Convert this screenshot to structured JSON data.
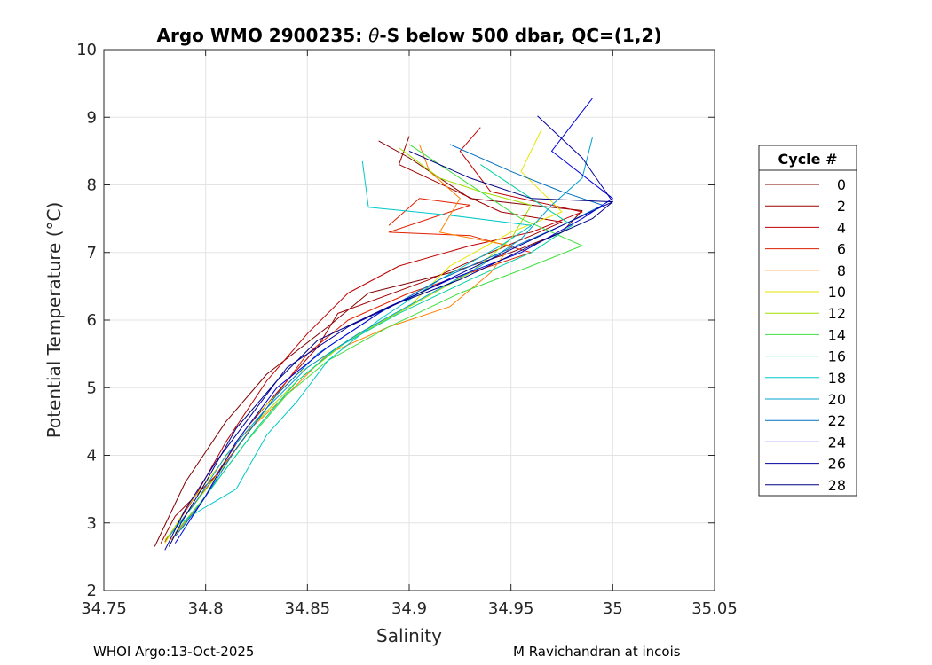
{
  "chart_data": {
    "type": "line",
    "title_prefix": "Argo WMO 2900235: ",
    "title_theta": "θ",
    "title_suffix": "-S below 500 dbar,  QC=(1,2)",
    "xlabel": "Salinity",
    "ylabel": "Potential Temperature (°C)",
    "xlim": [
      34.75,
      35.05
    ],
    "ylim": [
      2,
      10
    ],
    "xticks": [
      "34.75",
      "34.8",
      "34.85",
      "34.9",
      "34.95",
      "35",
      "35.05"
    ],
    "yticks": [
      "2",
      "3",
      "4",
      "5",
      "6",
      "7",
      "8",
      "9",
      "10"
    ],
    "grid": true,
    "legend": {
      "title": "Cycle #",
      "position": "right",
      "entries": [
        "0",
        "2",
        "4",
        "6",
        "8",
        "10",
        "12",
        "14",
        "16",
        "18",
        "20",
        "22",
        "24",
        "26",
        "28"
      ]
    },
    "series": [
      {
        "name": "0",
        "color": "#800000",
        "x": [
          34.885,
          34.9,
          34.915,
          34.93,
          34.96,
          34.985,
          34.975,
          34.95,
          34.92,
          34.88,
          34.86,
          34.83,
          34.81,
          34.79,
          34.775
        ],
        "y": [
          8.65,
          8.4,
          8.1,
          7.8,
          7.7,
          7.62,
          7.3,
          7.0,
          6.7,
          6.4,
          5.9,
          5.2,
          4.5,
          3.6,
          2.65
        ]
      },
      {
        "name": "2",
        "color": "#a00000",
        "x": [
          34.9,
          34.895,
          34.92,
          34.945,
          34.975,
          34.96,
          34.94,
          34.91,
          34.865,
          34.855,
          34.84,
          34.82,
          34.805,
          34.785,
          34.778
        ],
        "y": [
          8.72,
          8.3,
          7.95,
          7.6,
          7.45,
          7.25,
          7.0,
          6.6,
          6.1,
          5.6,
          5.1,
          4.4,
          3.7,
          3.1,
          2.7
        ]
      },
      {
        "name": "4",
        "color": "#c00000",
        "x": [
          34.935,
          34.925,
          34.94,
          34.985,
          34.96,
          34.93,
          34.895,
          34.87,
          34.85,
          34.83,
          34.81,
          34.795,
          34.78
        ],
        "y": [
          8.85,
          8.5,
          7.9,
          7.6,
          7.3,
          7.1,
          6.8,
          6.4,
          5.8,
          5.1,
          4.2,
          3.4,
          2.72
        ]
      },
      {
        "name": "6",
        "color": "#e02000",
        "x": [
          34.89,
          34.905,
          34.93,
          34.91,
          34.89,
          34.93,
          34.96,
          34.93,
          34.9,
          34.87,
          34.85,
          34.835,
          34.82,
          34.8,
          34.782
        ],
        "y": [
          7.4,
          7.8,
          7.7,
          7.5,
          7.3,
          7.25,
          7.0,
          6.7,
          6.4,
          6.0,
          5.5,
          4.9,
          4.3,
          3.5,
          2.8
        ]
      },
      {
        "name": "8",
        "color": "#ff8000",
        "x": [
          34.905,
          34.91,
          34.925,
          34.915,
          34.95,
          34.94,
          34.92,
          34.89,
          34.86,
          34.84,
          34.815,
          34.8,
          34.783
        ],
        "y": [
          8.6,
          8.2,
          7.8,
          7.3,
          7.1,
          6.7,
          6.2,
          5.9,
          5.5,
          4.9,
          4.2,
          3.4,
          2.75
        ]
      },
      {
        "name": "10",
        "color": "#e6e600",
        "x": [
          34.965,
          34.955,
          34.975,
          34.95,
          34.92,
          34.9,
          34.87,
          34.845,
          34.825,
          34.808,
          34.79,
          34.78
        ],
        "y": [
          8.82,
          8.2,
          7.6,
          7.3,
          6.8,
          6.2,
          5.7,
          5.2,
          4.6,
          3.9,
          3.2,
          2.7
        ]
      },
      {
        "name": "12",
        "color": "#a0e000",
        "x": [
          34.895,
          34.915,
          34.935,
          34.96,
          34.95,
          34.93,
          34.9,
          34.87,
          34.845,
          34.825,
          34.808,
          34.79,
          34.78
        ],
        "y": [
          8.55,
          8.1,
          7.9,
          7.7,
          7.2,
          6.7,
          6.2,
          5.7,
          5.1,
          4.5,
          3.8,
          3.1,
          2.75
        ]
      },
      {
        "name": "14",
        "color": "#40e040",
        "x": [
          34.9,
          34.925,
          34.955,
          34.985,
          34.96,
          34.925,
          34.89,
          34.86,
          34.84,
          34.82,
          34.8,
          34.785
        ],
        "y": [
          8.6,
          8.1,
          7.5,
          7.1,
          6.8,
          6.4,
          5.9,
          5.4,
          4.9,
          4.2,
          3.4,
          2.85
        ]
      },
      {
        "name": "16",
        "color": "#00d0a0",
        "x": [
          34.935,
          34.96,
          34.98,
          34.96,
          34.93,
          34.895,
          34.865,
          34.845,
          34.825,
          34.805,
          34.788
        ],
        "y": [
          8.3,
          7.8,
          7.4,
          7.0,
          6.6,
          6.1,
          5.6,
          5.1,
          4.4,
          3.6,
          2.9
        ]
      },
      {
        "name": "18",
        "color": "#00c8c8",
        "x": [
          34.877,
          34.88,
          34.92,
          34.96,
          34.945,
          34.915,
          34.885,
          34.86,
          34.845,
          34.83,
          34.815,
          34.798,
          34.785
        ],
        "y": [
          8.35,
          7.67,
          7.55,
          7.4,
          7.1,
          6.6,
          6.0,
          5.4,
          4.8,
          4.3,
          3.5,
          3.2,
          2.95
        ]
      },
      {
        "name": "20",
        "color": "#00a0d0",
        "x": [
          34.99,
          34.985,
          34.97,
          34.955,
          34.935,
          34.905,
          34.875,
          34.85,
          34.83,
          34.81,
          34.795,
          34.782
        ],
        "y": [
          8.7,
          8.1,
          7.7,
          7.2,
          6.8,
          6.3,
          5.8,
          5.3,
          4.7,
          4.0,
          3.3,
          2.8
        ]
      },
      {
        "name": "22",
        "color": "#0070c0",
        "x": [
          34.92,
          34.95,
          34.975,
          34.995,
          34.975,
          34.945,
          34.915,
          34.885,
          34.855,
          34.835,
          34.815,
          34.798,
          34.785
        ],
        "y": [
          8.6,
          8.2,
          7.9,
          7.7,
          7.4,
          7.0,
          6.6,
          6.1,
          5.5,
          4.9,
          4.1,
          3.3,
          2.8
        ]
      },
      {
        "name": "24",
        "color": "#0000e0",
        "x": [
          34.99,
          34.97,
          35.0,
          34.985,
          34.955,
          34.92,
          34.89,
          34.86,
          34.835,
          34.815,
          34.8,
          34.785
        ],
        "y": [
          9.28,
          8.5,
          7.8,
          7.5,
          7.0,
          6.6,
          6.2,
          5.6,
          5.0,
          4.2,
          3.4,
          2.7
        ]
      },
      {
        "name": "26",
        "color": "#0000a0",
        "x": [
          34.963,
          34.985,
          35.0,
          34.975,
          34.94,
          34.905,
          34.87,
          34.84,
          34.825,
          34.805,
          34.79,
          34.78
        ],
        "y": [
          9.02,
          8.4,
          7.75,
          7.4,
          6.9,
          6.4,
          5.9,
          5.3,
          4.7,
          3.9,
          3.2,
          2.6
        ]
      },
      {
        "name": "28",
        "color": "#000080",
        "x": [
          34.9,
          34.93,
          34.96,
          35.0,
          34.99,
          34.96,
          34.925,
          34.89,
          34.855,
          34.835,
          34.815,
          34.8,
          34.788,
          34.782
        ],
        "y": [
          8.5,
          8.1,
          7.8,
          7.75,
          7.5,
          7.1,
          6.6,
          6.2,
          5.7,
          5.1,
          4.4,
          3.6,
          3.0,
          2.65
        ]
      }
    ]
  },
  "footer": {
    "left": "WHOI Argo:13-Oct-2025",
    "right": "M Ravichandran at incois"
  }
}
